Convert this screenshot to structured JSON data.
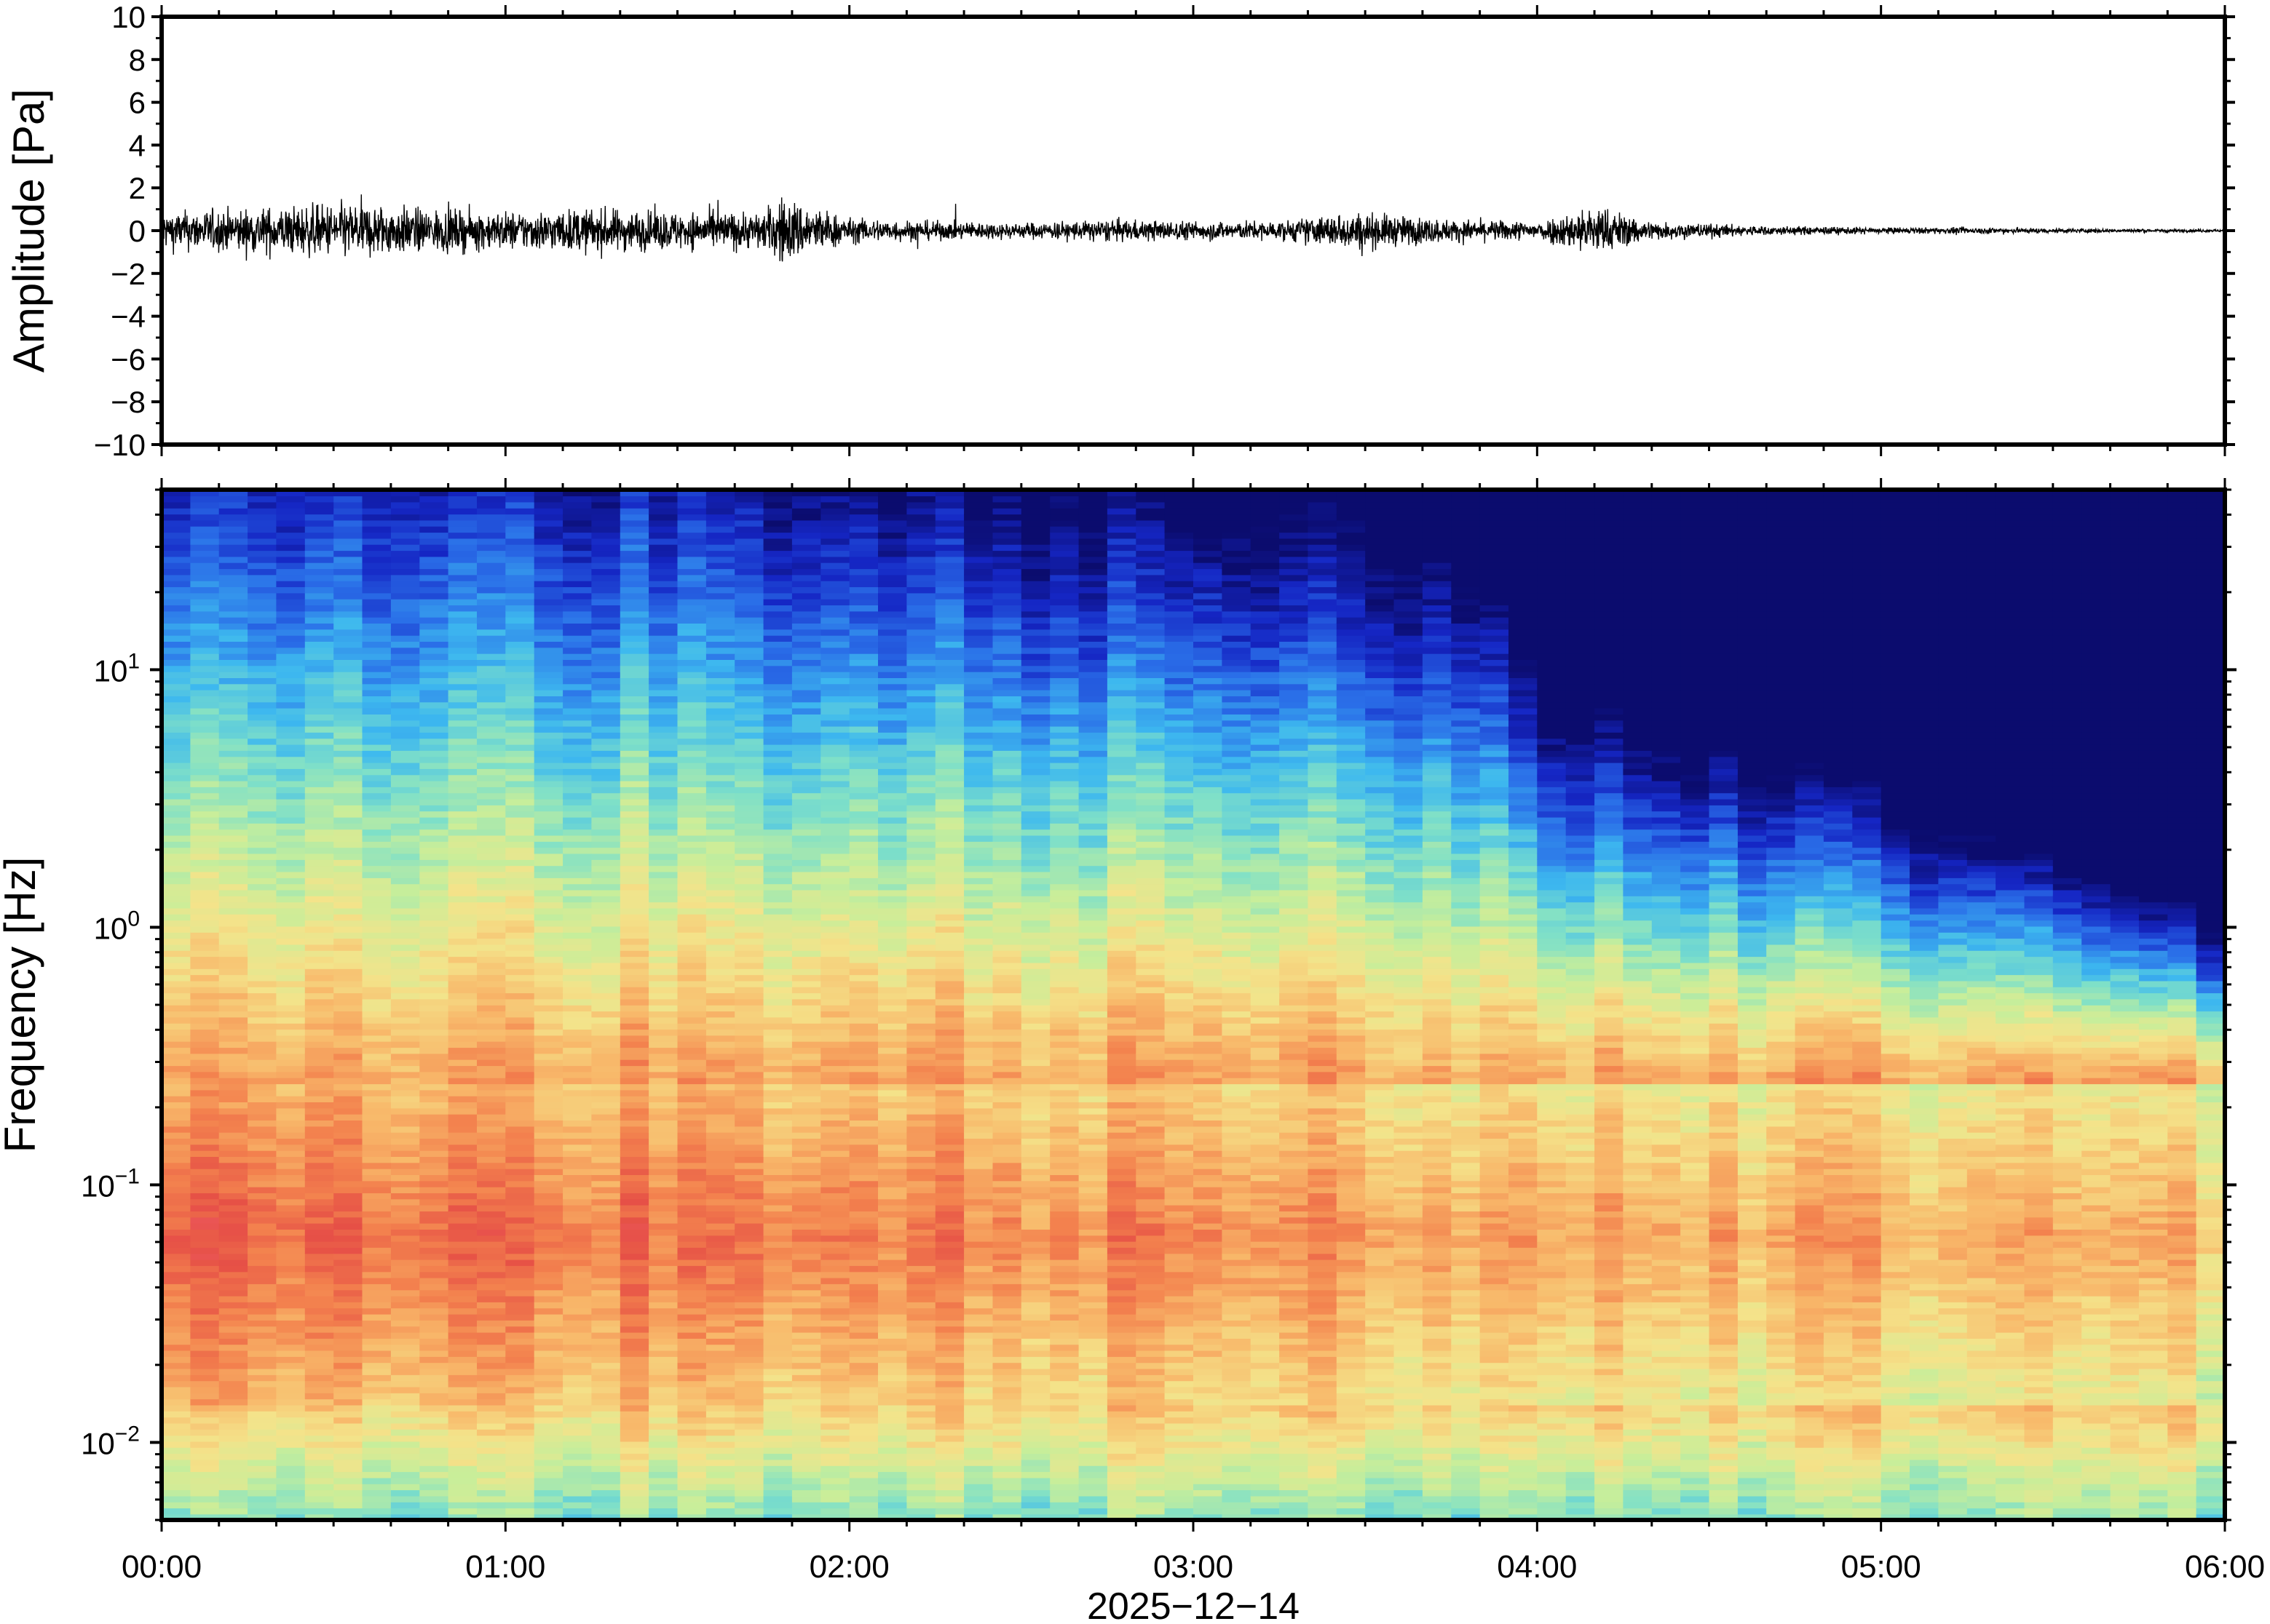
{
  "chart_data": [
    {
      "type": "line",
      "panel": "waveform",
      "ylabel": "Amplitude [Pa]",
      "ylim": [
        -10,
        10
      ],
      "y_ticks": [
        10,
        8,
        6,
        4,
        2,
        0,
        -2,
        -4,
        -6,
        -8,
        -10
      ],
      "y_tick_labels": [
        "10",
        "8",
        "6",
        "4",
        "2",
        "0",
        "−2",
        "−4",
        "−6",
        "−8",
        "−10"
      ],
      "xlim": [
        "00:00",
        "06:00"
      ],
      "x_ticks": [
        "00:00",
        "01:00",
        "02:00",
        "03:00",
        "04:00",
        "05:00",
        "06:00"
      ],
      "x_tick_labels_shown": false,
      "line_color": "#000000",
      "series": [
        {
          "x": [
            "00:00",
            "00:15",
            "00:25",
            "00:35",
            "00:45",
            "01:00",
            "01:15",
            "01:30",
            "01:45",
            "01:48",
            "02:00",
            "02:15",
            "02:30",
            "02:45",
            "03:00",
            "03:15",
            "03:28",
            "03:45",
            "04:00",
            "04:10",
            "04:20",
            "04:40",
            "05:00",
            "05:20",
            "05:40",
            "06:00"
          ],
          "envelope": [
            0.6,
            0.7,
            0.8,
            0.9,
            0.7,
            0.6,
            0.7,
            0.6,
            0.6,
            1.1,
            0.4,
            0.3,
            0.25,
            0.35,
            0.3,
            0.3,
            0.6,
            0.35,
            0.3,
            0.8,
            0.3,
            0.15,
            0.1,
            0.1,
            0.06,
            0.05
          ]
        }
      ]
    },
    {
      "type": "heatmap",
      "panel": "spectrogram",
      "ylabel": "Frequency [Hz]",
      "xlabel": "2025−12−14",
      "y_scale": "log",
      "ylim": [
        0.005,
        50
      ],
      "y_ticks": [
        {
          "value": 0.01,
          "base": "10",
          "exp": "−2"
        },
        {
          "value": 0.1,
          "base": "10",
          "exp": "−1"
        },
        {
          "value": 1,
          "base": "10",
          "exp": "0"
        },
        {
          "value": 10,
          "base": "10",
          "exp": "1"
        }
      ],
      "xlim": [
        "00:00",
        "06:00"
      ],
      "x_ticks": [
        "00:00",
        "01:00",
        "02:00",
        "03:00",
        "04:00",
        "05:00",
        "06:00"
      ],
      "colormap": [
        "#0b0c6e",
        "#1526c4",
        "#2a6ee8",
        "#3db8ef",
        "#7fe0c8",
        "#c8ee9a",
        "#f4e38a",
        "#f8b86a",
        "#f3824e",
        "#e65046",
        "#f26070"
      ],
      "colormap_note": "peak energy 0.02–0.2 Hz (warm), decreasing toward high frequency (dark blue)",
      "time_profile": [
        {
          "t": "00:00",
          "hf_level": 0.55
        },
        {
          "t": "01:00",
          "hf_level": 0.55
        },
        {
          "t": "02:00",
          "hf_level": 0.5
        },
        {
          "t": "03:00",
          "hf_level": 0.45
        },
        {
          "t": "03:50",
          "hf_level": 0.42
        },
        {
          "t": "04:00",
          "hf_level": 0.3
        },
        {
          "t": "05:00",
          "hf_level": 0.22
        },
        {
          "t": "06:00",
          "hf_level": 0.12
        }
      ]
    }
  ]
}
